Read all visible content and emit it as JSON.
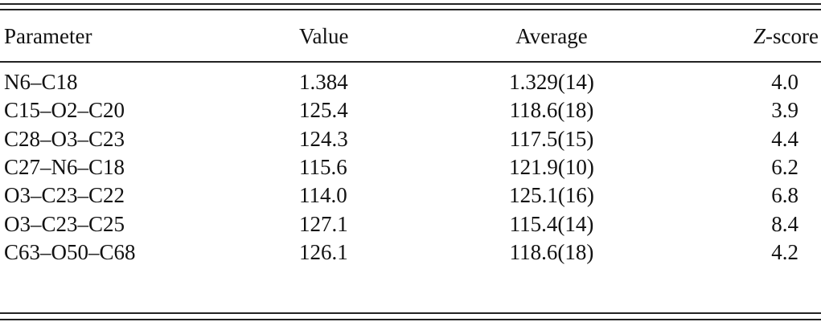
{
  "table": {
    "header": [
      "Parameter",
      "Value",
      "Average",
      [
        "Z",
        "-score"
      ]
    ],
    "rows": [
      [
        "N6–C18",
        "1.384",
        "1.329(14)",
        "4.0"
      ],
      [
        "C15–O2–C20",
        "125.4",
        "118.6(18)",
        "3.9"
      ],
      [
        "C28–O3–C23",
        "124.3",
        "117.5(15)",
        "4.4"
      ],
      [
        "C27–N6–C18",
        "115.6",
        "121.9(10)",
        "6.2"
      ],
      [
        "O3–C23–C22",
        "114.0",
        "125.1(16)",
        "6.8"
      ],
      [
        "O3–C23–C25",
        "127.1",
        "115.4(14)",
        "8.4"
      ],
      [
        "C63–O50–C68",
        "126.1",
        "118.6(18)",
        "4.2"
      ]
    ]
  }
}
